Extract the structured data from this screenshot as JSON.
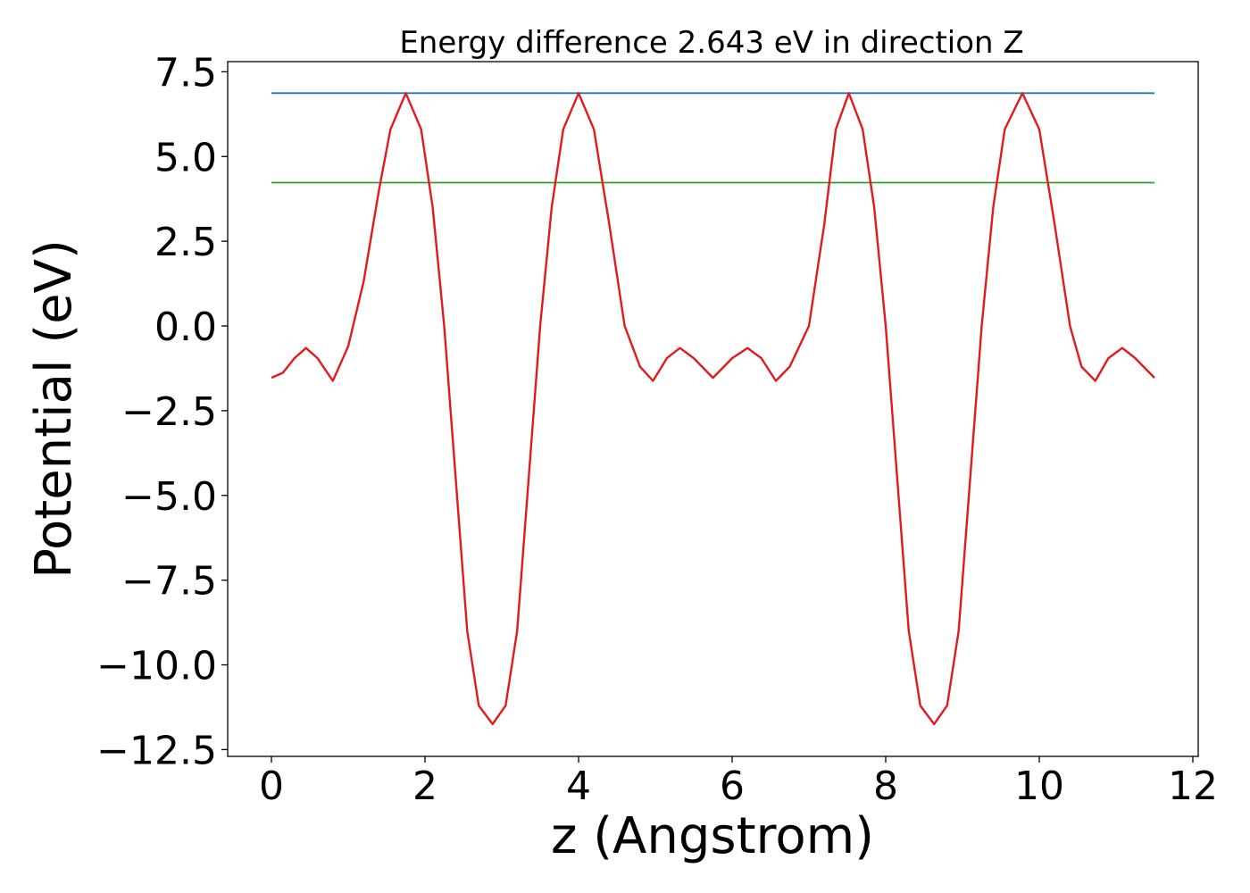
{
  "chart_data": {
    "type": "line",
    "title": "Energy difference 2.643 eV in direction Z",
    "xlabel": "z (Angstrom)",
    "ylabel": "Potential (eV)",
    "xlim": [
      -0.57,
      12.07
    ],
    "ylim": [
      -12.7,
      7.8
    ],
    "xticks": [
      0,
      2,
      4,
      6,
      8,
      10,
      12
    ],
    "xtick_labels": [
      "0",
      "2",
      "4",
      "6",
      "8",
      "10",
      "12"
    ],
    "yticks": [
      -12.5,
      -10.0,
      -7.5,
      -5.0,
      -2.5,
      0.0,
      2.5,
      5.0,
      7.5
    ],
    "ytick_labels": [
      "−12.5",
      "−10.0",
      "−7.5",
      "−5.0",
      "−2.5",
      "0.0",
      "2.5",
      "5.0",
      "7.5"
    ],
    "grid": false,
    "series": [
      {
        "color": "#1f77b4",
        "x": [
          0.0,
          11.5
        ],
        "y": [
          6.87,
          6.87
        ]
      },
      {
        "color": "#2ca02c",
        "x": [
          0.0,
          11.5
        ],
        "y": [
          4.23,
          4.23
        ]
      },
      {
        "color": "#e31a1c",
        "x": [
          0.0,
          0.15,
          0.3,
          0.45,
          0.6,
          0.8,
          1.0,
          1.2,
          1.4,
          1.55,
          1.75,
          1.95,
          2.1,
          2.25,
          2.4,
          2.55,
          2.7,
          2.88,
          3.05,
          3.2,
          3.35,
          3.5,
          3.65,
          3.8,
          4.0,
          4.2,
          4.4,
          4.6,
          4.8,
          4.97,
          5.15,
          5.32,
          5.5,
          5.75,
          6.0,
          6.2,
          6.38,
          6.57,
          6.75,
          7.0,
          7.2,
          7.35,
          7.52,
          7.7,
          7.85,
          8.0,
          8.15,
          8.3,
          8.45,
          8.63,
          8.8,
          8.95,
          9.1,
          9.25,
          9.4,
          9.55,
          9.78,
          10.0,
          10.2,
          10.4,
          10.55,
          10.73,
          10.9,
          11.08,
          11.25,
          11.5
        ],
        "y": [
          -1.53,
          -1.38,
          -0.95,
          -0.65,
          -0.95,
          -1.62,
          -0.6,
          1.3,
          4.0,
          5.8,
          6.87,
          5.8,
          3.5,
          0.0,
          -4.5,
          -9.0,
          -11.2,
          -11.75,
          -11.2,
          -9.0,
          -4.5,
          0.0,
          3.5,
          5.8,
          6.87,
          5.8,
          3.0,
          0.0,
          -1.2,
          -1.62,
          -0.95,
          -0.65,
          -0.95,
          -1.53,
          -0.95,
          -0.65,
          -0.95,
          -1.62,
          -1.2,
          0.0,
          3.0,
          5.8,
          6.87,
          5.8,
          3.5,
          0.0,
          -4.5,
          -9.0,
          -11.2,
          -11.75,
          -11.2,
          -9.0,
          -4.5,
          0.0,
          3.5,
          5.8,
          6.87,
          5.8,
          3.0,
          0.0,
          -1.2,
          -1.62,
          -0.95,
          -0.65,
          -0.95,
          -1.53
        ]
      }
    ]
  }
}
